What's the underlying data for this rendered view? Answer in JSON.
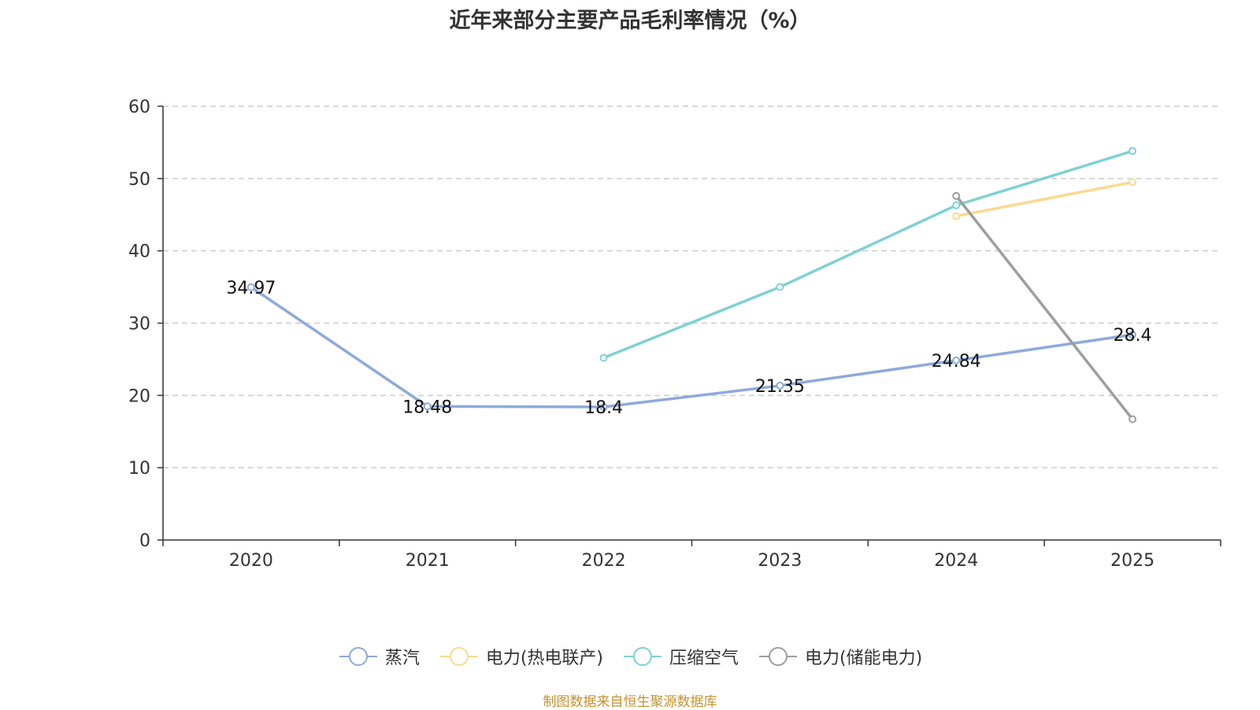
{
  "chart_data": {
    "type": "line",
    "title": "近年来部分主要产品毛利率情况（%）",
    "categories": [
      "2020",
      "2021",
      "2022",
      "2023",
      "2024",
      "2025"
    ],
    "ylim": [
      0,
      60
    ],
    "yticks": [
      0,
      10,
      20,
      30,
      40,
      50,
      60
    ],
    "grid": true,
    "legend_position": "bottom",
    "series": [
      {
        "name": "蒸汽",
        "color": "#8eaadb",
        "values": [
          34.97,
          18.48,
          18.4,
          21.35,
          24.84,
          28.4
        ],
        "labels": [
          "34.97",
          "18.48",
          "18.4",
          "21.35",
          "24.84",
          "28.4"
        ]
      },
      {
        "name": "电力(热电联产)",
        "color": "#fbd98e",
        "values": [
          null,
          null,
          null,
          null,
          44.8,
          49.5
        ]
      },
      {
        "name": "压缩空气",
        "color": "#7fd1d4",
        "values": [
          null,
          null,
          25.2,
          35.0,
          46.3,
          53.8
        ]
      },
      {
        "name": "电力(储能电力)",
        "color": "#9e9e9e",
        "values": [
          null,
          null,
          null,
          null,
          47.6,
          16.7
        ]
      }
    ]
  },
  "footer": {
    "source": "制图数据来自恒生聚源数据库"
  }
}
